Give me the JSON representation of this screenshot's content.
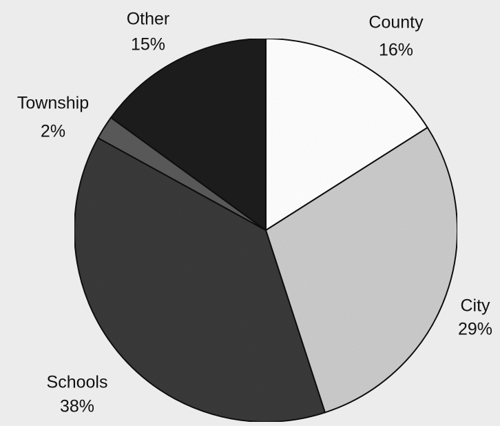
{
  "chart_data": {
    "type": "pie",
    "title": "",
    "slices": [
      {
        "label": "County",
        "value": 16,
        "value_label": "16%",
        "color": "#ffffff"
      },
      {
        "label": "City",
        "value": 29,
        "value_label": "29%",
        "color": "#cbcbcb"
      },
      {
        "label": "Schools",
        "value": 38,
        "value_label": "38%",
        "color": "#3a3a3a"
      },
      {
        "label": "Township",
        "value": 2,
        "value_label": "2%",
        "color": "#5a5a5a"
      },
      {
        "label": "Other",
        "value": 15,
        "value_label": "15%",
        "color": "#1e1e1e"
      }
    ],
    "start_angle_deg": 0,
    "direction": "clockwise",
    "legend": "none",
    "labels_position": "outside"
  }
}
